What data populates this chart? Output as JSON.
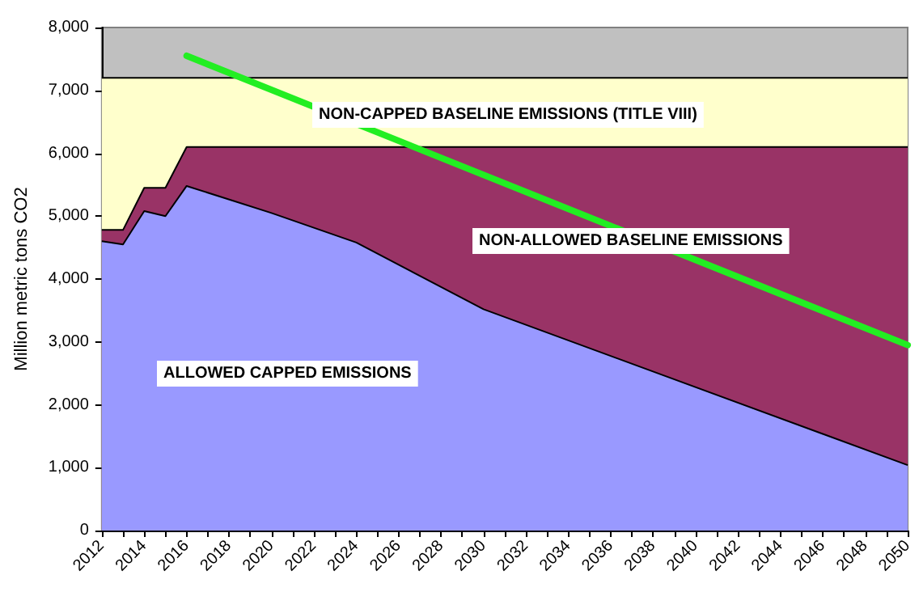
{
  "chart_data": {
    "type": "area",
    "stacked": true,
    "ylabel": "Million metric tons CO2",
    "x": [
      2012,
      2013,
      2014,
      2015,
      2016,
      2020,
      2024,
      2030,
      2050
    ],
    "series": [
      {
        "name": "ALLOWED CAPPED EMISSIONS",
        "color": "#9999ff",
        "values": [
          4600,
          4550,
          5080,
          5000,
          5480,
          5050,
          4580,
          3520,
          1040
        ]
      },
      {
        "name": "NON-ALLOWED BASELINE EMISSIONS",
        "color": "#993366",
        "values": [
          180,
          230,
          370,
          450,
          620,
          1050,
          1520,
          2580,
          5060
        ]
      },
      {
        "name": "NON-CAPPED BASELINE EMISSIONS (TITLE VIII)",
        "color": "#ffffcc",
        "values": [
          2420,
          2420,
          1750,
          1750,
          1100,
          1100,
          1100,
          1100,
          1100
        ]
      },
      {
        "type": "line",
        "color": "#22ee22",
        "x": [
          2016,
          2050
        ],
        "values": [
          7550,
          2950
        ]
      }
    ],
    "xlim": [
      2012,
      2050
    ],
    "xticks": [
      2012,
      {
        "value": 2013,
        "label": null
      },
      2014,
      {
        "value": 2015,
        "label": null
      },
      2016,
      {
        "value": 2017,
        "label": null
      },
      2018,
      {
        "value": 2019,
        "label": null
      },
      2020,
      {
        "value": 2021,
        "label": null
      },
      2022,
      {
        "value": 2023,
        "label": null
      },
      2024,
      {
        "value": 2025,
        "label": null
      },
      2026,
      {
        "value": 2027,
        "label": null
      },
      2028,
      {
        "value": 2029,
        "label": null
      },
      2030,
      {
        "value": 2031,
        "label": null
      },
      2032,
      {
        "value": 2033,
        "label": null
      },
      2034,
      {
        "value": 2035,
        "label": null
      },
      2036,
      {
        "value": 2037,
        "label": null
      },
      2038,
      {
        "value": 2039,
        "label": null
      },
      2040,
      {
        "value": 2041,
        "label": null
      },
      2042,
      {
        "value": 2043,
        "label": null
      },
      2044,
      {
        "value": 2045,
        "label": null
      },
      2046,
      {
        "value": 2047,
        "label": null
      },
      2048,
      {
        "value": 2049,
        "label": null
      },
      2050
    ],
    "ylim": [
      0,
      8000
    ],
    "yticks": [
      0,
      {
        "value": 1000,
        "label": "1,000"
      },
      {
        "value": 2000,
        "label": "2,000"
      },
      {
        "value": 3000,
        "label": "3,000"
      },
      {
        "value": 4000,
        "label": "4,000"
      },
      {
        "value": 5000,
        "label": "5,000"
      },
      {
        "value": 6000,
        "label": "6,000"
      },
      {
        "value": 7000,
        "label": "7,000"
      },
      {
        "value": 8000,
        "label": "8,000"
      }
    ],
    "grid": false,
    "legend": false
  }
}
